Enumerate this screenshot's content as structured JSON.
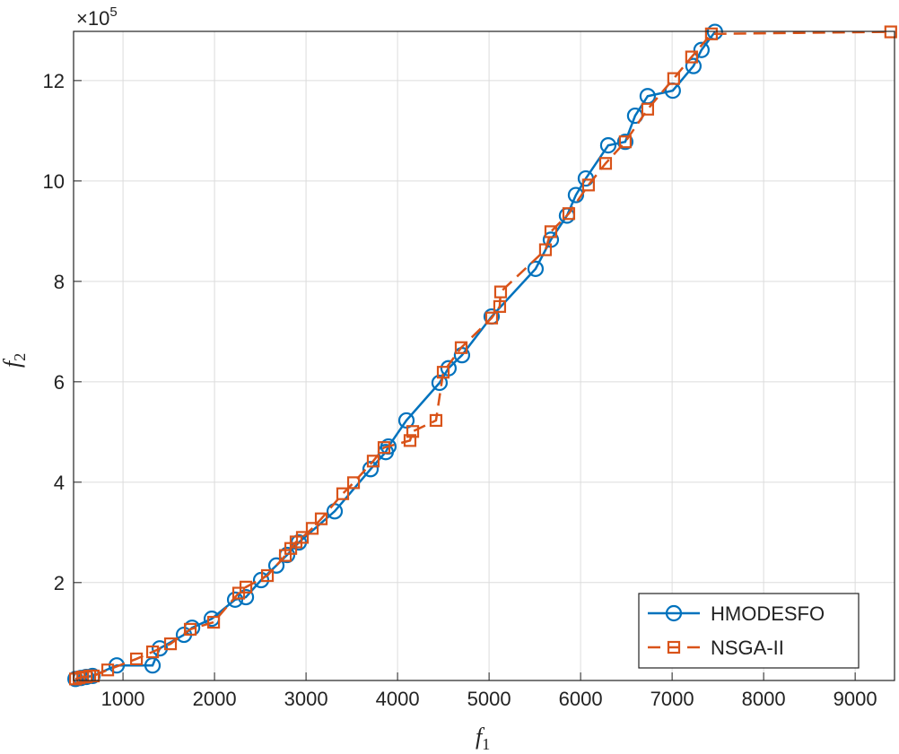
{
  "chart_data": {
    "type": "line",
    "xlabel": {
      "base": "f",
      "sub": "1"
    },
    "ylabel": {
      "base": "f",
      "sub": "2"
    },
    "y_scale_label": {
      "base": "×10",
      "exponent": "5"
    },
    "xlim": [
      460,
      9430
    ],
    "ylim": [
      0.05,
      12.98
    ],
    "xticks": [
      1000,
      2000,
      3000,
      4000,
      5000,
      6000,
      7000,
      8000,
      9000
    ],
    "yticks": [
      2,
      4,
      6,
      8,
      10,
      12
    ],
    "grid": true,
    "legend": "southeast",
    "series": [
      {
        "name": "HMODESFO",
        "color": "#0072BD",
        "marker": "circle",
        "linestyle": "solid",
        "x": [
          481,
          540,
          598,
          667,
          931,
          1323,
          1402,
          1666,
          1755,
          1970,
          2225,
          2343,
          2509,
          2676,
          2793,
          2921,
          3313,
          3705,
          3871,
          3900,
          4097,
          4459,
          4557,
          4704,
          5028,
          5508,
          5675,
          5851,
          5949,
          6057,
          6302,
          6488,
          6596,
          6733,
          7007,
          7233,
          7321,
          7468
        ],
        "values": [
          0.08,
          0.1,
          0.12,
          0.14,
          0.35,
          0.35,
          0.69,
          0.96,
          1.1,
          1.28,
          1.66,
          1.71,
          2.05,
          2.34,
          2.55,
          2.8,
          3.42,
          4.26,
          4.6,
          4.71,
          5.23,
          5.98,
          6.27,
          6.53,
          7.3,
          8.25,
          8.83,
          9.31,
          9.72,
          10.05,
          10.71,
          10.78,
          11.3,
          11.69,
          11.8,
          12.29,
          12.61,
          12.97
        ]
      },
      {
        "name": "NSGA-II",
        "color": "#D95319",
        "marker": "square",
        "linestyle": "dashed",
        "x": [
          481,
          520,
          560,
          598,
          637,
          676,
          833,
          1147,
          1323,
          1519,
          1735,
          1990,
          2264,
          2343,
          2578,
          2774,
          2833,
          2891,
          2960,
          3068,
          3166,
          3401,
          3519,
          3734,
          3852,
          4136,
          4166,
          4420,
          4499,
          4695,
          5028,
          5116,
          5126,
          5616,
          5675,
          5871,
          6086,
          6273,
          6488,
          6733,
          7017,
          7213,
          7429,
          9389
        ],
        "values": [
          0.08,
          0.1,
          0.12,
          0.12,
          0.14,
          0.14,
          0.26,
          0.48,
          0.62,
          0.78,
          1.07,
          1.21,
          1.79,
          1.91,
          2.14,
          2.54,
          2.68,
          2.81,
          2.9,
          3.08,
          3.27,
          3.77,
          3.99,
          4.42,
          4.69,
          4.83,
          5.01,
          5.23,
          6.19,
          6.68,
          7.27,
          7.5,
          7.79,
          8.63,
          8.99,
          9.35,
          9.92,
          10.35,
          10.78,
          11.43,
          12.04,
          12.47,
          12.93,
          12.97
        ]
      }
    ]
  }
}
